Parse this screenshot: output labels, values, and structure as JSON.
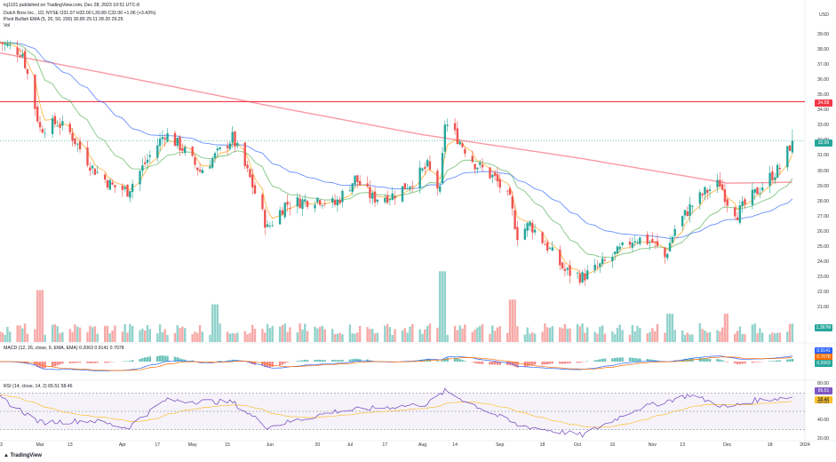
{
  "header": {
    "publisher": "tcj1101 published on TradingView.com, Dec 28, 2023 10:51 UTC-8",
    "symbol_line": "Dutch Bros Inc., 1D, NYSE  O31.07 H32.00 L30.89 C32.00 +1.06 (+3.43%)",
    "ema_line": "Pivot Bullish EMA (5, 20, 50, 200)  30.80  29.11  28.20  29.26",
    "vol_label": "Vol"
  },
  "colors": {
    "up": "#26a69a",
    "down": "#ef5350",
    "ema5": "#ff9800",
    "ema20": "#4caf50",
    "ema50": "#2962ff",
    "ema200": "#f23645",
    "resistance": "#f23645",
    "price_line": "#26a69a"
  },
  "price_axis": {
    "ticks": [
      "39.00",
      "38.00",
      "37.00",
      "36.00",
      "35.00",
      "34.00",
      "33.00",
      "32.00",
      "31.00",
      "30.00",
      "29.00",
      "28.00",
      "27.00",
      "26.00",
      "25.00",
      "24.00",
      "23.00",
      "22.00",
      "21.00"
    ],
    "usd_label": "USD",
    "resistance_label": "34.58",
    "price_label": "32.00",
    "volume_label": "1.367M"
  },
  "x_axis": {
    "ticks": [
      "13",
      "Mar",
      "13",
      "Apr",
      "17",
      "May",
      "15",
      "Jun",
      "20",
      "Jul",
      "17",
      "Aug",
      "14",
      "Sep",
      "18",
      "Oct",
      "16",
      "Nov",
      "13",
      "Dec",
      "18",
      "2024"
    ]
  },
  "macd": {
    "legend": "MACD (12, 26, close, 9, EMA, EMA)  0.2063  0.9141  0.7078",
    "labels": [
      "0.9141",
      "0.7078",
      "0.2063"
    ]
  },
  "rsi": {
    "legend": "RSI (14, close, 14, 2)  65.51  58.46",
    "labels": [
      "65.51",
      "58.46"
    ],
    "ticks": [
      "80.00",
      "60.00",
      "40.00",
      "20.00"
    ]
  },
  "branding": {
    "logo": "TradingView"
  },
  "chart_data": [
    {
      "type": "candlestick",
      "title": "Dutch Bros Inc., 1D, NYSE",
      "ylim": [
        21,
        40
      ],
      "x_range": [
        "2023-02-13",
        "2024-01-01"
      ],
      "resistance_level": 34.58,
      "last_close": 32.0,
      "anchors": [
        {
          "date": "2023-02-13",
          "close": 38.5
        },
        {
          "date": "2023-02-22",
          "close": 37.8
        },
        {
          "date": "2023-03-01",
          "close": 32.8
        },
        {
          "date": "2023-03-08",
          "close": 33.2
        },
        {
          "date": "2023-03-13",
          "close": 32.5
        },
        {
          "date": "2023-03-22",
          "close": 30.2
        },
        {
          "date": "2023-03-30",
          "close": 29.0
        },
        {
          "date": "2023-04-05",
          "close": 28.7
        },
        {
          "date": "2023-04-12",
          "close": 30.5
        },
        {
          "date": "2023-04-20",
          "close": 32.5
        },
        {
          "date": "2023-04-27",
          "close": 31.5
        },
        {
          "date": "2023-05-04",
          "close": 30.0
        },
        {
          "date": "2023-05-12",
          "close": 31.3
        },
        {
          "date": "2023-05-17",
          "close": 32.2
        },
        {
          "date": "2023-05-24",
          "close": 29.5
        },
        {
          "date": "2023-05-31",
          "close": 26.2
        },
        {
          "date": "2023-06-07",
          "close": 27.8
        },
        {
          "date": "2023-06-20",
          "close": 28.2
        },
        {
          "date": "2023-06-27",
          "close": 27.8
        },
        {
          "date": "2023-07-05",
          "close": 29.5
        },
        {
          "date": "2023-07-12",
          "close": 28.2
        },
        {
          "date": "2023-07-20",
          "close": 28.4
        },
        {
          "date": "2023-07-27",
          "close": 29.2
        },
        {
          "date": "2023-08-03",
          "close": 30.3
        },
        {
          "date": "2023-08-08",
          "close": 28.6
        },
        {
          "date": "2023-08-10",
          "close": 33.2
        },
        {
          "date": "2023-08-15",
          "close": 32.2
        },
        {
          "date": "2023-08-22",
          "close": 30.5
        },
        {
          "date": "2023-08-30",
          "close": 29.5
        },
        {
          "date": "2023-09-05",
          "close": 28.0
        },
        {
          "date": "2023-09-08",
          "close": 25.8
        },
        {
          "date": "2023-09-13",
          "close": 26.5
        },
        {
          "date": "2023-09-20",
          "close": 25.0
        },
        {
          "date": "2023-09-27",
          "close": 23.4
        },
        {
          "date": "2023-10-04",
          "close": 23.0
        },
        {
          "date": "2023-10-10",
          "close": 23.6
        },
        {
          "date": "2023-10-18",
          "close": 24.6
        },
        {
          "date": "2023-10-25",
          "close": 25.6
        },
        {
          "date": "2023-11-01",
          "close": 25.3
        },
        {
          "date": "2023-11-06",
          "close": 24.3
        },
        {
          "date": "2023-11-10",
          "close": 26.2
        },
        {
          "date": "2023-11-16",
          "close": 27.6
        },
        {
          "date": "2023-11-22",
          "close": 28.6
        },
        {
          "date": "2023-11-28",
          "close": 29.2
        },
        {
          "date": "2023-12-01",
          "close": 28.0
        },
        {
          "date": "2023-12-05",
          "close": 27.2
        },
        {
          "date": "2023-12-12",
          "close": 28.5
        },
        {
          "date": "2023-12-18",
          "close": 29.6
        },
        {
          "date": "2023-12-22",
          "close": 30.2
        },
        {
          "date": "2023-12-27",
          "close": 32.0
        }
      ],
      "ema200": [
        {
          "date": "2023-02-13",
          "value": 37.8
        },
        {
          "date": "2023-04-01",
          "value": 36.3
        },
        {
          "date": "2023-06-01",
          "value": 34.3
        },
        {
          "date": "2023-08-01",
          "value": 32.4
        },
        {
          "date": "2023-10-01",
          "value": 30.9
        },
        {
          "date": "2023-12-01",
          "value": 29.2
        },
        {
          "date": "2023-12-27",
          "value": 29.26
        }
      ]
    },
    {
      "type": "bar",
      "title": "Vol",
      "ylim": [
        0,
        16
      ],
      "spikes": [
        {
          "date": "2023-03-01",
          "value": 11
        },
        {
          "date": "2023-05-10",
          "value": 8
        },
        {
          "date": "2023-08-09",
          "value": 15
        },
        {
          "date": "2023-09-06",
          "value": 9
        },
        {
          "date": "2023-11-08",
          "value": 6
        },
        {
          "date": "2023-12-01",
          "value": 6
        }
      ]
    },
    {
      "type": "line",
      "title": "MACD (12, 26, close, 9, EMA, EMA)",
      "series": [
        {
          "name": "MACD"
        },
        {
          "name": "Signal"
        },
        {
          "name": "Histogram"
        }
      ]
    },
    {
      "type": "line",
      "title": "RSI (14, close, 14, 2)",
      "ylim": [
        20,
        80
      ],
      "last": {
        "rsi": 65.51,
        "ma": 58.46
      },
      "anchors": [
        {
          "date": "2023-02-13",
          "value": 65
        },
        {
          "date": "2023-03-01",
          "value": 38
        },
        {
          "date": "2023-03-22",
          "value": 40
        },
        {
          "date": "2023-04-05",
          "value": 32
        },
        {
          "date": "2023-04-20",
          "value": 62
        },
        {
          "date": "2023-05-17",
          "value": 60
        },
        {
          "date": "2023-05-31",
          "value": 33
        },
        {
          "date": "2023-06-27",
          "value": 50
        },
        {
          "date": "2023-08-03",
          "value": 58
        },
        {
          "date": "2023-08-10",
          "value": 72
        },
        {
          "date": "2023-09-08",
          "value": 35
        },
        {
          "date": "2023-10-04",
          "value": 24
        },
        {
          "date": "2023-10-25",
          "value": 52
        },
        {
          "date": "2023-11-16",
          "value": 68
        },
        {
          "date": "2023-12-01",
          "value": 54
        },
        {
          "date": "2023-12-12",
          "value": 62
        },
        {
          "date": "2023-12-27",
          "value": 65.5
        }
      ]
    }
  ]
}
